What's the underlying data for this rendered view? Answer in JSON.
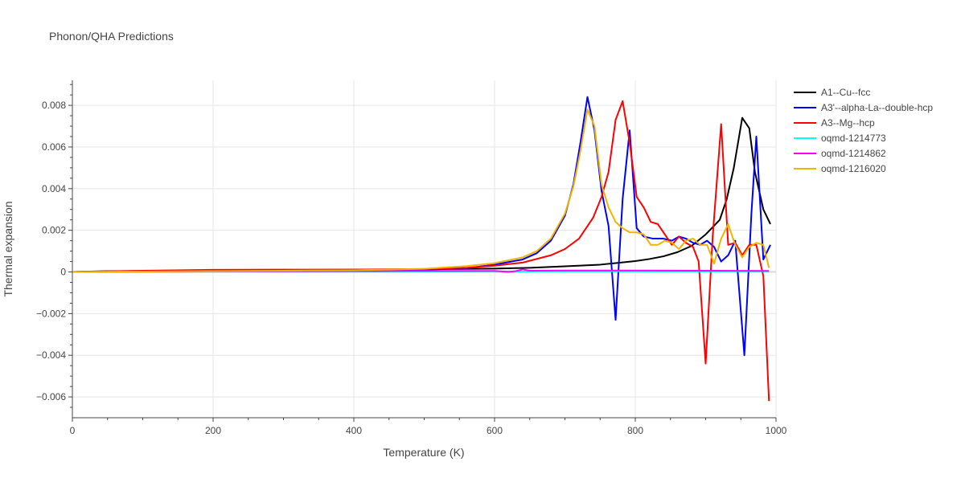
{
  "chart_data": {
    "type": "line",
    "title": "Phonon/QHA Predictions",
    "xlabel": "Temperature (K)",
    "ylabel": "Thermal expansion",
    "xlim": [
      0,
      1000
    ],
    "ylim": [
      -0.007,
      0.0092
    ],
    "x_ticks": [
      0,
      200,
      400,
      600,
      800,
      1000
    ],
    "x_tick_labels": [
      "0",
      "200",
      "400",
      "600",
      "800",
      "1000"
    ],
    "y_ticks": [
      -0.006,
      -0.004,
      -0.002,
      0,
      0.002,
      0.004,
      0.006,
      0.008
    ],
    "y_tick_labels": [
      "−0.006",
      "−0.004",
      "−0.002",
      "0",
      "0.002",
      "0.004",
      "0.006",
      "0.008"
    ],
    "grid": true,
    "legend_position": "top-right",
    "series": [
      {
        "name": "A1--Cu--fcc",
        "color": "#000000",
        "points": [
          [
            0,
            0
          ],
          [
            50,
            4e-05
          ],
          [
            100,
            5e-05
          ],
          [
            200,
            7e-05
          ],
          [
            300,
            9e-05
          ],
          [
            400,
            0.00011
          ],
          [
            500,
            0.00013
          ],
          [
            600,
            0.00016
          ],
          [
            650,
            0.0002
          ],
          [
            700,
            0.00027
          ],
          [
            750,
            0.00035
          ],
          [
            800,
            0.00052
          ],
          [
            820,
            0.00062
          ],
          [
            840,
            0.00075
          ],
          [
            860,
            0.00095
          ],
          [
            880,
            0.00125
          ],
          [
            900,
            0.0018
          ],
          [
            920,
            0.0025
          ],
          [
            930,
            0.0035
          ],
          [
            940,
            0.005
          ],
          [
            952,
            0.0074
          ],
          [
            962,
            0.0069
          ],
          [
            970,
            0.0048
          ],
          [
            982,
            0.003
          ],
          [
            992,
            0.0023
          ]
        ]
      },
      {
        "name": "A3'--alpha-La--double-hcp",
        "color": "#0000ff",
        "points": [
          [
            0,
            0
          ],
          [
            100,
            3e-05
          ],
          [
            200,
            4e-05
          ],
          [
            300,
            5e-05
          ],
          [
            400,
            6e-05
          ],
          [
            500,
            0.0001
          ],
          [
            560,
            0.00018
          ],
          [
            600,
            0.00035
          ],
          [
            640,
            0.0006
          ],
          [
            660,
            0.0009
          ],
          [
            680,
            0.0015
          ],
          [
            700,
            0.0027
          ],
          [
            712,
            0.0042
          ],
          [
            722,
            0.0062
          ],
          [
            732,
            0.0084
          ],
          [
            742,
            0.0068
          ],
          [
            752,
            0.0039
          ],
          [
            762,
            0.0022
          ],
          [
            772,
            -0.0023
          ],
          [
            782,
            0.0035
          ],
          [
            792,
            0.0068
          ],
          [
            802,
            0.0021
          ],
          [
            812,
            0.0017
          ],
          [
            825,
            0.0016
          ],
          [
            840,
            0.0016
          ],
          [
            852,
            0.0015
          ],
          [
            862,
            0.0017
          ],
          [
            872,
            0.0016
          ],
          [
            882,
            0.0014
          ],
          [
            892,
            0.0013
          ],
          [
            902,
            0.0015
          ],
          [
            912,
            0.0012
          ],
          [
            922,
            0.0005
          ],
          [
            932,
            0.0008
          ],
          [
            942,
            0.0015
          ],
          [
            955,
            -0.004
          ],
          [
            965,
            0.0028
          ],
          [
            972,
            0.0065
          ],
          [
            982,
            0.0006
          ],
          [
            992,
            0.0013
          ]
        ]
      },
      {
        "name": "A3--Mg--hcp",
        "color": "#ff0000",
        "points": [
          [
            0,
            0
          ],
          [
            100,
            6e-05
          ],
          [
            200,
            0.0001
          ],
          [
            300,
            0.00011
          ],
          [
            400,
            0.00011
          ],
          [
            500,
            0.00014
          ],
          [
            560,
            0.0002
          ],
          [
            600,
            0.0003
          ],
          [
            640,
            0.00045
          ],
          [
            680,
            0.0008
          ],
          [
            700,
            0.0011
          ],
          [
            720,
            0.0016
          ],
          [
            740,
            0.0026
          ],
          [
            752,
            0.0036
          ],
          [
            762,
            0.0048
          ],
          [
            772,
            0.0073
          ],
          [
            782,
            0.0082
          ],
          [
            792,
            0.0062
          ],
          [
            802,
            0.0036
          ],
          [
            812,
            0.0031
          ],
          [
            822,
            0.0024
          ],
          [
            832,
            0.0023
          ],
          [
            842,
            0.0018
          ],
          [
            852,
            0.0013
          ],
          [
            862,
            0.0017
          ],
          [
            872,
            0.0014
          ],
          [
            882,
            0.0012
          ],
          [
            890,
            0.0005
          ],
          [
            900,
            -0.0044
          ],
          [
            910,
            0.0017
          ],
          [
            922,
            0.0071
          ],
          [
            932,
            0.0013
          ],
          [
            942,
            0.0014
          ],
          [
            952,
            0.0008
          ],
          [
            962,
            0.0013
          ],
          [
            972,
            0.0013
          ],
          [
            982,
            -0.0002
          ],
          [
            990,
            -0.0062
          ]
        ]
      },
      {
        "name": "oqmd-1214773",
        "color": "#00ffff",
        "points": [
          [
            0,
            0
          ],
          [
            200,
            1e-05
          ],
          [
            400,
            2e-05
          ],
          [
            500,
            2e-05
          ],
          [
            600,
            3e-05
          ],
          [
            640,
            2e-05
          ],
          [
            660,
            3e-05
          ],
          [
            800,
            3e-05
          ],
          [
            900,
            3e-05
          ],
          [
            990,
            3e-05
          ]
        ]
      },
      {
        "name": "oqmd-1214862",
        "color": "#ff00ff",
        "points": [
          [
            0,
            0
          ],
          [
            200,
            3e-05
          ],
          [
            400,
            4e-05
          ],
          [
            500,
            5e-05
          ],
          [
            600,
            5e-05
          ],
          [
            620,
            0.0
          ],
          [
            630,
            4e-05
          ],
          [
            640,
            0.00012
          ],
          [
            650,
            6e-05
          ],
          [
            700,
            7e-05
          ],
          [
            800,
            7e-05
          ],
          [
            900,
            6e-05
          ],
          [
            990,
            5e-05
          ]
        ]
      },
      {
        "name": "oqmd-1216020",
        "color": "#f0b400",
        "points": [
          [
            0,
            0
          ],
          [
            100,
            2e-05
          ],
          [
            200,
            4e-05
          ],
          [
            300,
            6e-05
          ],
          [
            400,
            8e-05
          ],
          [
            500,
            0.00015
          ],
          [
            560,
            0.00028
          ],
          [
            600,
            0.00042
          ],
          [
            640,
            0.0007
          ],
          [
            660,
            0.001
          ],
          [
            680,
            0.0016
          ],
          [
            700,
            0.0028
          ],
          [
            712,
            0.0041
          ],
          [
            722,
            0.0058
          ],
          [
            732,
            0.0078
          ],
          [
            742,
            0.007
          ],
          [
            752,
            0.0042
          ],
          [
            762,
            0.0031
          ],
          [
            772,
            0.0024
          ],
          [
            782,
            0.0021
          ],
          [
            792,
            0.0019
          ],
          [
            802,
            0.0019
          ],
          [
            812,
            0.0018
          ],
          [
            822,
            0.0013
          ],
          [
            832,
            0.0013
          ],
          [
            842,
            0.0015
          ],
          [
            852,
            0.0014
          ],
          [
            862,
            0.0011
          ],
          [
            872,
            0.0015
          ],
          [
            882,
            0.0016
          ],
          [
            892,
            0.0013
          ],
          [
            902,
            0.0013
          ],
          [
            912,
            0.0004
          ],
          [
            922,
            0.0016
          ],
          [
            932,
            0.0023
          ],
          [
            942,
            0.0013
          ],
          [
            952,
            0.0007
          ],
          [
            962,
            0.0012
          ],
          [
            972,
            0.0014
          ],
          [
            982,
            0.0013
          ],
          [
            990,
            0.0002
          ]
        ]
      }
    ]
  }
}
